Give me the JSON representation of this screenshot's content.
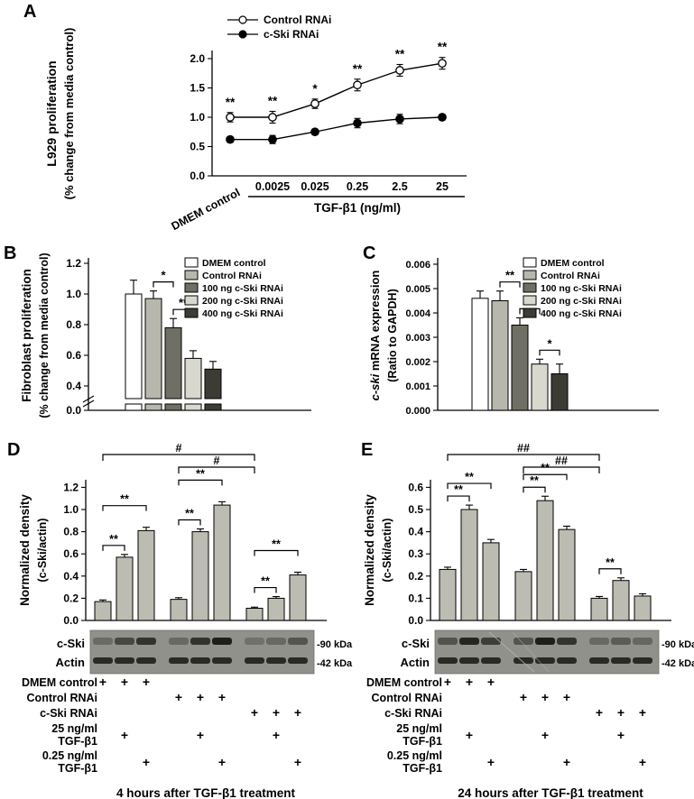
{
  "panel_labels": {
    "A": "A",
    "B": "B",
    "C": "C",
    "D": "D",
    "E": "E"
  },
  "legend_items": [
    {
      "label": "DMEM control",
      "color": "#ffffff"
    },
    {
      "label": "Control RNAi",
      "color": "#b7b7ad"
    },
    {
      "label": "100 ng c-Ski RNAi",
      "color": "#6f6f65"
    },
    {
      "label": "200 ng c-Ski RNAi",
      "color": "#d8d8ce"
    },
    {
      "label": "400 ng c-Ski RNAi",
      "color": "#3c3c35"
    }
  ],
  "bar_color": "#bcbcb2",
  "blot_rows": [
    {
      "name": "c-Ski",
      "kda": "-90 kDa"
    },
    {
      "name": "Actin",
      "kda": "-42 kDa"
    }
  ],
  "treatments": [
    {
      "label": "DMEM control",
      "plus": [
        1,
        1,
        1,
        0,
        0,
        0,
        0,
        0,
        0
      ]
    },
    {
      "label": "Control  RNAi",
      "plus": [
        0,
        0,
        0,
        1,
        1,
        1,
        0,
        0,
        0
      ]
    },
    {
      "label": "c-Ski  RNAi",
      "plus": [
        0,
        0,
        0,
        0,
        0,
        0,
        1,
        1,
        1
      ]
    },
    {
      "label": "25 ng/ml",
      "label2": "TGF-β1",
      "plus": [
        0,
        1,
        0,
        0,
        1,
        0,
        0,
        1,
        0
      ]
    },
    {
      "label": "0.25 ng/ml",
      "label2": "TGF-β1",
      "plus": [
        0,
        0,
        1,
        0,
        0,
        1,
        0,
        0,
        1
      ]
    }
  ],
  "chart_data": [
    {
      "id": "A",
      "type": "line",
      "ylabel1": "L929 proliferation",
      "ylabel2": "(% change from media control)",
      "xlabel": "TGF-β1 (ng/ml)",
      "categories": [
        "DMEM control",
        "0.0025",
        "0.025",
        "0.25",
        "2.5",
        "25"
      ],
      "yticks": [
        "0.0",
        "0.5",
        "1.0",
        "1.5",
        "2.0"
      ],
      "ylim": [
        0,
        2.25
      ],
      "series": [
        {
          "name": "Control RNAi",
          "marker": "open",
          "values": [
            1.0,
            1.0,
            1.23,
            1.55,
            1.8,
            1.92
          ],
          "errors": [
            0.08,
            0.1,
            0.08,
            0.1,
            0.1,
            0.1
          ]
        },
        {
          "name": "c-Ski RNAi",
          "marker": "filled",
          "values": [
            0.62,
            0.62,
            0.75,
            0.9,
            0.97,
            1.0
          ],
          "errors": [
            0.05,
            0.07,
            0.05,
            0.08,
            0.08,
            0.05
          ]
        }
      ],
      "sig": [
        "**",
        "**",
        "*",
        "**",
        "**",
        "**"
      ]
    },
    {
      "id": "B",
      "type": "bar",
      "axis_break": true,
      "ylabel1": "Fibroblast proliferation",
      "ylabel2": "(% change from media control)",
      "categories": [
        "DMEM control",
        "Control RNAi",
        "100 ng c-Ski RNAi",
        "200 ng c-Ski RNAi",
        "400 ng c-Ski RNAi"
      ],
      "yticks": [
        "0.0",
        "0.4",
        "0.6",
        "0.8",
        "1.0",
        "1.2"
      ],
      "values": [
        1.0,
        0.97,
        0.78,
        0.58,
        0.51
      ],
      "errors": [
        0.09,
        0.05,
        0.06,
        0.05,
        0.05
      ],
      "brackets": [
        {
          "from": 1,
          "to": 2,
          "label": "*",
          "row": 0
        },
        {
          "from": 2,
          "to": 3,
          "label": "**",
          "row": 0
        }
      ]
    },
    {
      "id": "C",
      "type": "bar",
      "ylabel1_italic": "c-ski",
      "ylabel1_rest": " mRNA expression",
      "ylabel2": "(Ratio to GAPDH)",
      "categories": [
        "DMEM control",
        "Control RNAi",
        "100 ng c-Ski RNAi",
        "200 ng c-Ski RNAi",
        "400 ng c-Ski RNAi"
      ],
      "yticks": [
        "0.000",
        "0.001",
        "0.002",
        "0.003",
        "0.004",
        "0.005",
        "0.006"
      ],
      "values": [
        0.0046,
        0.0045,
        0.0035,
        0.0019,
        0.0015
      ],
      "errors": [
        0.0003,
        0.0004,
        0.0003,
        0.0002,
        0.0004
      ],
      "brackets": [
        {
          "from": 1,
          "to": 2,
          "label": "**",
          "row": 0
        },
        {
          "from": 2,
          "to": 3,
          "label": "**",
          "row": 0
        },
        {
          "from": 3,
          "to": 4,
          "label": "*",
          "row": 0
        }
      ]
    },
    {
      "id": "D",
      "type": "bar",
      "grouped": true,
      "ylabel1": "Normalized density",
      "ylabel2": "(c-Ski/actin)",
      "yticks": [
        "0.0",
        "0.2",
        "0.4",
        "0.6",
        "0.8",
        "1.0",
        "1.2"
      ],
      "values": [
        0.17,
        0.57,
        0.81,
        0.19,
        0.8,
        1.04,
        0.11,
        0.2,
        0.41
      ],
      "errors": [
        0.015,
        0.025,
        0.03,
        0.015,
        0.025,
        0.03,
        0.01,
        0.015,
        0.025
      ],
      "brackets": [
        {
          "from": 0,
          "to": 1,
          "label": "**",
          "row": 0
        },
        {
          "from": 0,
          "to": 2,
          "label": "**",
          "row": 1
        },
        {
          "from": 3,
          "to": 4,
          "label": "**",
          "row": 0
        },
        {
          "from": 3,
          "to": 5,
          "label": "**",
          "row": 1
        },
        {
          "from": 6,
          "to": 7,
          "label": "**",
          "row": 0
        },
        {
          "from": 6,
          "to": 8,
          "label": "**",
          "row": 1
        }
      ],
      "top_brackets": [
        {
          "from": 0,
          "to": 6,
          "label": "#"
        },
        {
          "from": 3,
          "to": 6,
          "label": "#"
        }
      ],
      "caption": "4 hours after TGF-β1 treatment"
    },
    {
      "id": "E",
      "type": "bar",
      "grouped": true,
      "ylabel1": "Normalized density",
      "ylabel2": "(c-Ski/actin)",
      "yticks": [
        "0.0",
        "0.1",
        "0.2",
        "0.3",
        "0.4",
        "0.5",
        "0.6"
      ],
      "values": [
        0.23,
        0.5,
        0.35,
        0.22,
        0.54,
        0.41,
        0.1,
        0.18,
        0.11
      ],
      "errors": [
        0.01,
        0.02,
        0.015,
        0.01,
        0.02,
        0.015,
        0.008,
        0.012,
        0.01
      ],
      "brackets": [
        {
          "from": 0,
          "to": 1,
          "label": "**",
          "row": 0
        },
        {
          "from": 0,
          "to": 2,
          "label": "**",
          "row": 1
        },
        {
          "from": 3,
          "to": 4,
          "label": "**",
          "row": 0
        },
        {
          "from": 3,
          "to": 5,
          "label": "**",
          "row": 1
        },
        {
          "from": 6,
          "to": 7,
          "label": "**",
          "row": 0
        }
      ],
      "top_brackets": [
        {
          "from": 0,
          "to": 6,
          "label": "##"
        },
        {
          "from": 3,
          "to": 6,
          "label": "##"
        }
      ],
      "caption": "24 hours after TGF-β1 treatment"
    }
  ]
}
